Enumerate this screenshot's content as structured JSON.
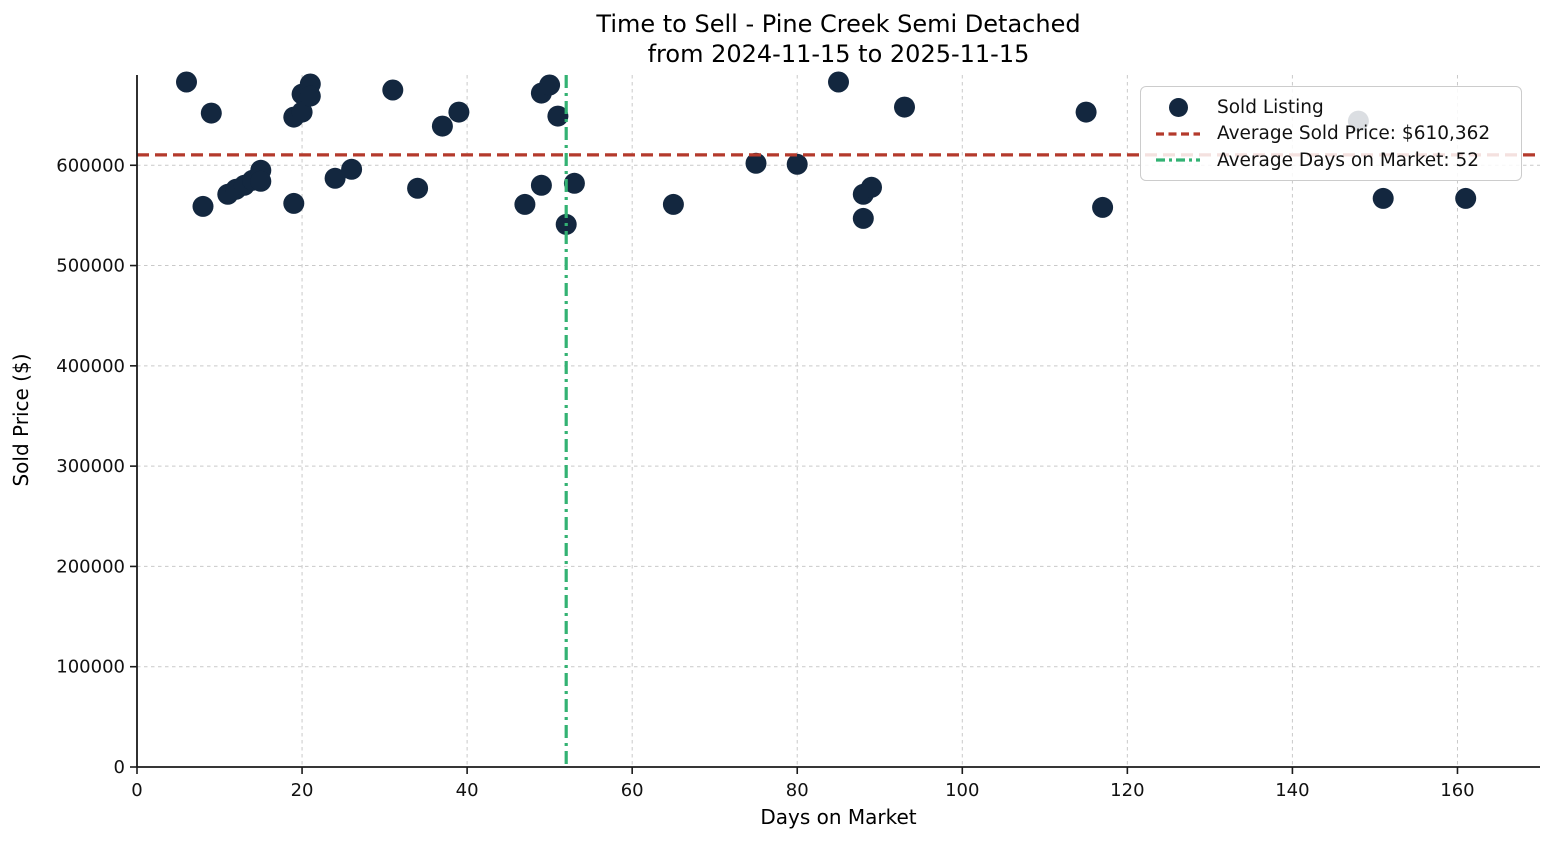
{
  "title": {
    "line1": "Time to Sell - Pine Creek Semi Detached",
    "line2": "from 2024-11-15 to 2025-11-15"
  },
  "legend": {
    "items": [
      {
        "label": "Sold Listing",
        "type": "marker"
      },
      {
        "label": "Average Sold Price: $610,362",
        "type": "dashed-line"
      },
      {
        "label": "Average Days on Market: 52",
        "type": "dashdot-line"
      }
    ]
  },
  "chart_data": {
    "type": "scatter",
    "title": "Time to Sell - Pine Creek Semi Detached from 2024-11-15 to 2025-11-15",
    "xlabel": "Days on Market",
    "ylabel": "Sold Price ($)",
    "xlim": [
      0,
      170
    ],
    "ylim": [
      0,
      690000
    ],
    "grid": true,
    "legend_position": "upper right",
    "x_ticks": [
      0,
      20,
      40,
      60,
      80,
      100,
      120,
      140,
      160
    ],
    "x_tick_labels": [
      "0",
      "20",
      "40",
      "60",
      "80",
      "100",
      "120",
      "140",
      "160"
    ],
    "y_ticks": [
      0,
      100000,
      200000,
      300000,
      400000,
      500000,
      600000
    ],
    "y_tick_labels": [
      "0",
      "100000",
      "200000",
      "300000",
      "400000",
      "500000",
      "600000"
    ],
    "avg_sold_price": 610362,
    "avg_days_on_market": 52,
    "series": [
      {
        "name": "Sold Listing",
        "points": [
          [
            6,
            683000
          ],
          [
            8,
            559000
          ],
          [
            9,
            652000
          ],
          [
            11,
            571000
          ],
          [
            12,
            576000
          ],
          [
            13,
            580000
          ],
          [
            14,
            585000
          ],
          [
            15,
            595000
          ],
          [
            15,
            584000
          ],
          [
            19,
            648000
          ],
          [
            19,
            562000
          ],
          [
            20,
            671000
          ],
          [
            20,
            653000
          ],
          [
            21,
            681000
          ],
          [
            21,
            669000
          ],
          [
            24,
            587000
          ],
          [
            26,
            596000
          ],
          [
            31,
            675000
          ],
          [
            34,
            577000
          ],
          [
            37,
            639000
          ],
          [
            39,
            653000
          ],
          [
            47,
            561000
          ],
          [
            49,
            672000
          ],
          [
            49,
            580000
          ],
          [
            50,
            680000
          ],
          [
            51,
            649000
          ],
          [
            52,
            541000
          ],
          [
            53,
            582000
          ],
          [
            65,
            561000
          ],
          [
            75,
            602000
          ],
          [
            80,
            601000
          ],
          [
            85,
            683000
          ],
          [
            88,
            571000
          ],
          [
            88,
            547000
          ],
          [
            89,
            578000
          ],
          [
            93,
            658000
          ],
          [
            115,
            653000
          ],
          [
            117,
            558000
          ],
          [
            148,
            644000
          ],
          [
            151,
            567000
          ],
          [
            161,
            567000
          ]
        ]
      }
    ]
  },
  "colors": {
    "marker": "#13273f",
    "avg_price_line": "#b43a2c",
    "avg_days_line": "#33b273",
    "grid": "#c9c9c9",
    "spine": "#1a1a1a",
    "text": "#111111",
    "legend_border": "#cccccc",
    "legend_background": "rgba(255,255,255,0.85)"
  }
}
